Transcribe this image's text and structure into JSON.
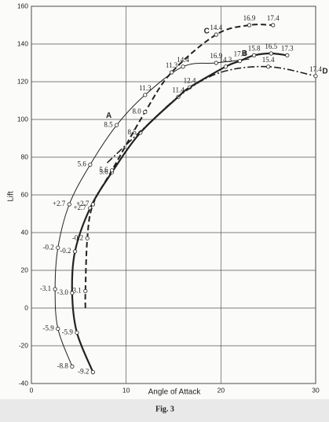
{
  "chart_data": {
    "type": "line",
    "xlabel": "Angle of Attack",
    "ylabel": "Lift",
    "caption": "Fig. 3",
    "xlim": [
      0,
      30
    ],
    "xticks": [
      0,
      10,
      20,
      30
    ],
    "ylim": [
      -40,
      160
    ],
    "yticks": [
      -40,
      -20,
      0,
      20,
      40,
      60,
      80,
      100,
      120,
      140,
      160
    ],
    "grid": true,
    "series": [
      {
        "name": "A",
        "color": "#222222",
        "style": "thin",
        "x": [
          4.3,
          2.8,
          2.5,
          2.8,
          4.0,
          6.2,
          9.0,
          12.0,
          16.0,
          19.5,
          23
        ],
        "values": [
          -31,
          -11,
          10,
          32,
          55,
          76,
          97,
          113,
          128,
          130,
          132
        ],
        "point_labels": [
          "-8.8",
          "-5.9",
          "-3.1",
          "-0.2",
          "+2.7",
          "5.6",
          "8.5",
          "11.3",
          "14.4",
          "16.9",
          null
        ]
      },
      {
        "name": "B",
        "color": "#222222",
        "style": "thick",
        "x": [
          6.5,
          4.8,
          4.3,
          4.6,
          6.2,
          8.5,
          11.5,
          15.5,
          16.7,
          20.5,
          22,
          23.5,
          25.3,
          27
        ],
        "values": [
          -34,
          -13,
          8,
          30,
          53,
          72,
          93,
          112,
          117,
          128,
          131,
          134,
          135,
          134
        ],
        "point_labels": [
          "-9.2",
          "-5.9",
          "-3.0",
          "-0.2",
          "+2.7",
          "5.6",
          "8.5",
          "11.4",
          "12.4",
          "14.3",
          "17.4",
          "15.8",
          "16.5",
          "17.3"
        ]
      },
      {
        "name": "C",
        "color": "#222222",
        "style": "dashed",
        "x": [
          5.7,
          5.7,
          5.9,
          6.5,
          8.5,
          12,
          14.8,
          19.5,
          23,
          25.5
        ],
        "values": [
          0,
          9,
          37,
          55,
          73,
          104,
          125,
          145,
          150,
          150
        ],
        "point_labels": [
          null,
          "-3.1",
          "-0.2",
          "+2.7",
          "5.6",
          "8.0",
          "11.3",
          "14.4",
          "16.9",
          "17.4"
        ]
      },
      {
        "name": "D",
        "color": "#222222",
        "style": "dashdot",
        "x": [
          8,
          12,
          16,
          20,
          25,
          30
        ],
        "values": [
          77,
          96,
          114,
          125,
          128,
          123
        ],
        "point_labels": [
          null,
          null,
          null,
          null,
          "15.4",
          "17.4"
        ]
      }
    ]
  }
}
